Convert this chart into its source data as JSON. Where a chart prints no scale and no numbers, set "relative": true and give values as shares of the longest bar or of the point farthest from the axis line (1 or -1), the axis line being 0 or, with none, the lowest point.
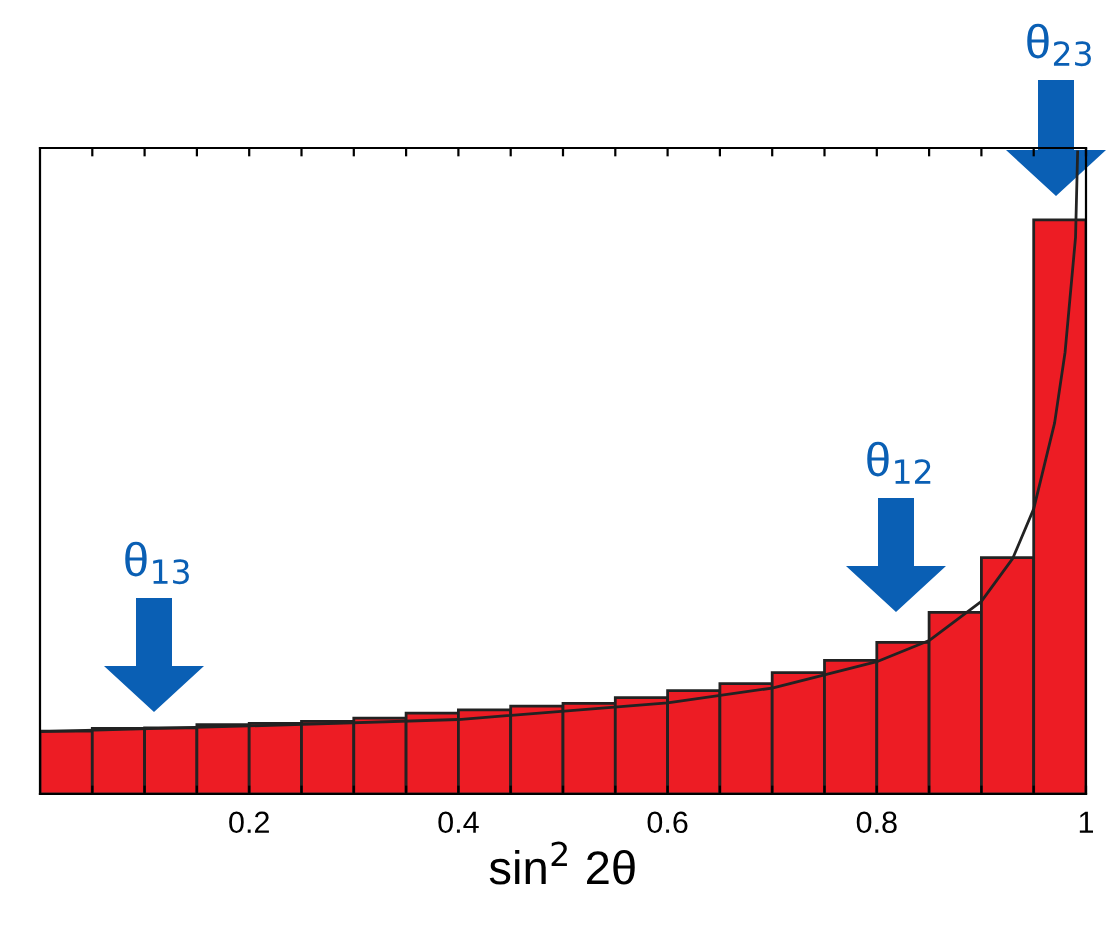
{
  "chart_data": {
    "type": "histogram",
    "relative": true,
    "xlabel": "sin$^{2}$ 2θ",
    "bins": [
      0,
      0.05,
      0.1,
      0.15,
      0.2,
      0.25,
      0.3,
      0.35,
      0.4,
      0.45,
      0.5,
      0.55,
      0.6,
      0.65,
      0.7,
      0.75,
      0.8,
      0.85,
      0.9,
      0.95,
      1
    ],
    "values": [
      0.098,
      0.102,
      0.103,
      0.108,
      0.11,
      0.113,
      0.118,
      0.126,
      0.131,
      0.137,
      0.141,
      0.15,
      0.161,
      0.172,
      0.189,
      0.208,
      0.236,
      0.283,
      0.368,
      0.894
    ],
    "color": "#ed1c24",
    "series": [
      {
        "type": "line",
        "color": "#222222",
        "x": [
          0,
          0.2,
          0.4,
          0.6,
          0.7,
          0.8,
          0.85,
          0.9,
          0.93,
          0.95,
          0.97,
          0.98,
          0.99,
          0.992
        ],
        "values": [
          0.097,
          0.106,
          0.116,
          0.142,
          0.165,
          0.206,
          0.239,
          0.3,
          0.367,
          0.444,
          0.578,
          0.688,
          0.867,
          1
        ]
      }
    ],
    "xlim": [
      0,
      1
    ],
    "xticks": [
      {
        "value": 0.05,
        "label": null
      },
      {
        "value": 0.1,
        "label": null
      },
      {
        "value": 0.15,
        "label": null
      },
      0.2,
      {
        "value": 0.25,
        "label": null
      },
      {
        "value": 0.3,
        "label": null
      },
      {
        "value": 0.35,
        "label": null
      },
      0.4,
      {
        "value": 0.45,
        "label": null
      },
      {
        "value": 0.5,
        "label": null
      },
      {
        "value": 0.55,
        "label": null
      },
      0.6,
      {
        "value": 0.65,
        "label": null
      },
      {
        "value": 0.7,
        "label": null
      },
      {
        "value": 0.75,
        "label": null
      },
      0.8,
      {
        "value": 0.85,
        "label": null
      },
      {
        "value": 0.9,
        "label": null
      },
      {
        "value": 0.95,
        "label": null
      },
      1
    ],
    "annotations": [
      "θ$_{13}$",
      "θ$_{12}$",
      "θ$_{23}$"
    ],
    "grid": false,
    "legend": false
  }
}
